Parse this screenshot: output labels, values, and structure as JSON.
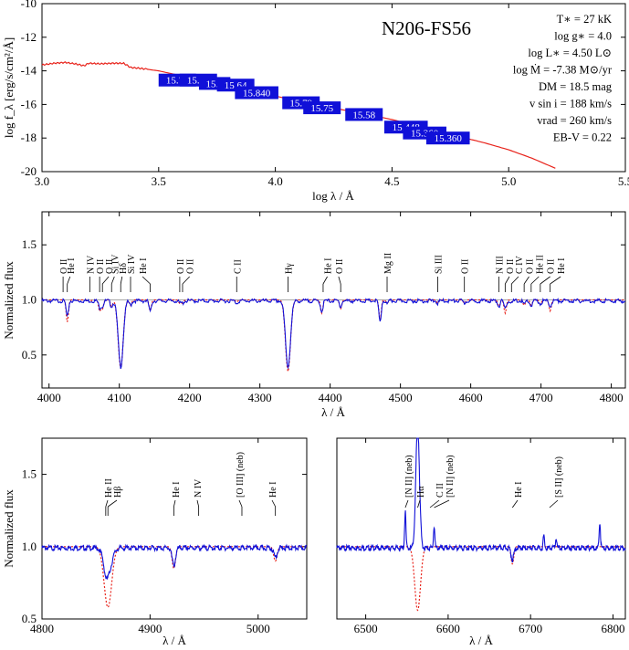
{
  "chart_data": [
    {
      "type": "line",
      "title": "N206-FS56",
      "xlabel": "log λ / Å",
      "ylabel": "log f_λ [erg/s/cm²/Å]",
      "xlim": [
        3.0,
        5.5
      ],
      "ylim": [
        -20,
        -10
      ],
      "xticks": [
        3.0,
        3.5,
        4.0,
        4.5,
        5.0,
        5.5
      ],
      "yticks": [
        -20,
        -18,
        -16,
        -14,
        -12,
        -10
      ],
      "series": [
        {
          "color": "#e8231b",
          "x": [
            3.0,
            3.05,
            3.1,
            3.15,
            3.18,
            3.2,
            3.25,
            3.3,
            3.35,
            3.38,
            3.42,
            3.5,
            3.6,
            3.7,
            3.8,
            3.9,
            4.0,
            4.1,
            4.2,
            4.3,
            4.4,
            4.5,
            4.6,
            4.7,
            4.8,
            4.9,
            5.0,
            5.1,
            5.2
          ],
          "y": [
            -13.65,
            -13.55,
            -13.5,
            -13.6,
            -13.7,
            -13.55,
            -13.58,
            -13.55,
            -13.55,
            -13.8,
            -13.85,
            -14.0,
            -14.3,
            -14.6,
            -14.9,
            -15.2,
            -15.5,
            -15.8,
            -16.1,
            -16.35,
            -16.6,
            -16.9,
            -17.25,
            -17.6,
            -17.95,
            -18.3,
            -18.7,
            -19.2,
            -19.8
          ]
        }
      ],
      "photometry": {
        "color": "#1010d8",
        "x": [
          3.58,
          3.67,
          3.74,
          3.83,
          3.92,
          4.11,
          4.2,
          4.38,
          4.56,
          4.64,
          4.74
        ],
        "y": [
          -14.55,
          -14.55,
          -14.75,
          -14.85,
          -15.3,
          -15.9,
          -16.2,
          -16.6,
          -17.35,
          -17.7,
          -18.0
        ],
        "labels": [
          "15.75",
          "15.73",
          "15.8",
          "15.64",
          "15.840",
          "15.79",
          "15.75",
          "15.58",
          "15.448",
          "15.360",
          "15.360"
        ]
      },
      "parameters": [
        "T∗ = 27 kK",
        "log g∗ = 4.0",
        "log L∗ = 4.50 L⊙",
        "log Ṁ = -7.38 M⊙/yr",
        "DM = 18.5 mag",
        "v sin i = 188 km/s",
        "vrad = 260 km/s",
        "EB-V = 0.22"
      ]
    },
    {
      "type": "line",
      "xlabel": "λ / Å",
      "ylabel": "Normalized flux",
      "xlim": [
        3990,
        4820
      ],
      "ylim": [
        0.2,
        1.8
      ],
      "xticks": [
        4000,
        4100,
        4200,
        4300,
        4400,
        4500,
        4600,
        4700,
        4800
      ],
      "yticks": [
        0.5,
        1.0,
        1.5
      ],
      "series": [
        {
          "name": "observed",
          "color": "#1010d8"
        },
        {
          "name": "model",
          "color": "#e8231b",
          "dashed": true
        }
      ],
      "lines": [
        {
          "label": "O II",
          "w": 4020,
          "depth_obs": 0.0,
          "depth_mod": 0.0
        },
        {
          "label": "He I",
          "w": 4026,
          "depth_obs": 0.15,
          "depth_mod": 0.2
        },
        {
          "label": "N IV",
          "w": 4058,
          "depth_obs": 0.0,
          "depth_mod": 0.02
        },
        {
          "label": "O II",
          "w": 4072,
          "depth_obs": 0.06,
          "depth_mod": 0.1
        },
        {
          "label": "O II",
          "w": 4076,
          "depth_obs": 0.05,
          "depth_mod": 0.08
        },
        {
          "label": "Si IV",
          "w": 4089,
          "depth_obs": 0.05,
          "depth_mod": 0.06
        },
        {
          "label": "Hδ",
          "w": 4102,
          "depth_obs": 0.6,
          "depth_mod": 0.62
        },
        {
          "label": "Si IV",
          "w": 4116,
          "depth_obs": 0.04,
          "depth_mod": 0.05
        },
        {
          "label": "He I",
          "w": 4144,
          "depth_obs": 0.1,
          "depth_mod": 0.1
        },
        {
          "label": "O II",
          "w": 4186,
          "depth_obs": 0.02,
          "depth_mod": 0.03
        },
        {
          "label": "O II",
          "w": 4190,
          "depth_obs": 0.02,
          "depth_mod": 0.03
        },
        {
          "label": "C II",
          "w": 4267,
          "depth_obs": 0.02,
          "depth_mod": 0.02
        },
        {
          "label": "Hγ",
          "w": 4340,
          "depth_obs": 0.6,
          "depth_mod": 0.65
        },
        {
          "label": "He I",
          "w": 4388,
          "depth_obs": 0.1,
          "depth_mod": 0.12
        },
        {
          "label": "He I",
          "w": 4471,
          "depth_obs": 0.2,
          "depth_mod": 0.18
        },
        {
          "label": "O II",
          "w": 4415,
          "depth_obs": 0.05,
          "depth_mod": 0.08
        },
        {
          "label": "Mg II",
          "w": 4481,
          "depth_obs": 0.03,
          "depth_mod": 0.03
        },
        {
          "label": "Si III",
          "w": 4553,
          "depth_obs": 0.02,
          "depth_mod": 0.03
        },
        {
          "label": "O II",
          "w": 4591,
          "depth_obs": 0.02,
          "depth_mod": 0.03
        },
        {
          "label": "N III",
          "w": 4640,
          "depth_obs": 0.05,
          "depth_mod": 0.06
        },
        {
          "label": "O II",
          "w": 4649,
          "depth_obs": 0.08,
          "depth_mod": 0.12
        },
        {
          "label": "C IV",
          "w": 4658,
          "depth_obs": 0.02,
          "depth_mod": 0.02
        },
        {
          "label": "O II",
          "w": 4676,
          "depth_obs": 0.03,
          "depth_mod": 0.05
        },
        {
          "label": "He II",
          "w": 4686,
          "depth_obs": 0.05,
          "depth_mod": 0.05
        },
        {
          "label": "O II",
          "w": 4699,
          "depth_obs": 0.03,
          "depth_mod": 0.04
        },
        {
          "label": "He I",
          "w": 4713,
          "depth_obs": 0.05,
          "depth_mod": 0.1
        }
      ],
      "annotations": [
        "O II",
        "He I",
        "N IV",
        "O II",
        "O II",
        "Si IV",
        "Hδ",
        "Si IV",
        "He I",
        "O II",
        "O II",
        "C II",
        "Hγ",
        "He I",
        "O II",
        "Mg II",
        "Si III",
        "O II",
        "N III",
        "O II",
        "C IV",
        "O II",
        "He II",
        "O II",
        "He I"
      ]
    },
    {
      "type": "line",
      "xlabel": "λ / Å",
      "ylabel": "Normalized flux",
      "xlim": [
        4800,
        5045
      ],
      "ylim": [
        0.5,
        1.75
      ],
      "xticks": [
        4800,
        4900,
        5000
      ],
      "yticks": [
        0.5,
        1.0,
        1.5
      ],
      "lines": [
        {
          "label": "He II",
          "w": 4859,
          "depth_obs": 0.05,
          "depth_mod": 0.0
        },
        {
          "label": "Hβ",
          "w": 4861,
          "depth_obs": 0.18,
          "depth_mod": 0.42
        },
        {
          "label": "He I",
          "w": 4922,
          "depth_obs": 0.12,
          "depth_mod": 0.15
        },
        {
          "label": "N IV",
          "w": 4945,
          "depth_obs": 0.0,
          "depth_mod": 0.0
        },
        {
          "label": "He I",
          "w": 5016,
          "depth_obs": 0.06,
          "depth_mod": 0.1
        }
      ],
      "annotations": [
        "He II",
        "Hβ",
        "He I",
        "N IV",
        "[O III] (neb)",
        "He I"
      ]
    },
    {
      "type": "line",
      "xlabel": "λ / Å",
      "xlim": [
        6465,
        6815
      ],
      "ylim": [
        0.5,
        1.75
      ],
      "xticks": [
        6500,
        6600,
        6700,
        6800
      ],
      "emissions": [
        {
          "w": 6548,
          "height": 0.25
        },
        {
          "w": 6563,
          "height": 0.85
        },
        {
          "w": 6583,
          "height": 0.15
        },
        {
          "w": 6716,
          "height": 0.08
        },
        {
          "w": 6731,
          "height": 0.07
        },
        {
          "w": 6784,
          "height": 0.18
        }
      ],
      "lines": [
        {
          "label": "Hα",
          "w": 6563,
          "depth_obs": 0.0,
          "depth_mod": 0.44
        },
        {
          "label": "He I",
          "w": 6678,
          "depth_obs": 0.08,
          "depth_mod": 0.12
        }
      ],
      "annotations": [
        "[N II] (neb)",
        "Hα",
        "C II",
        "[N II] (neb)",
        "He I",
        "[S II] (neb)"
      ]
    }
  ]
}
